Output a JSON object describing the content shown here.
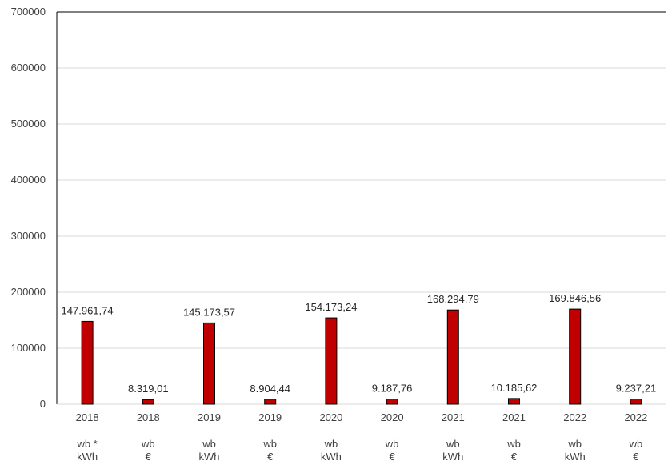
{
  "chart_data": {
    "type": "bar",
    "title": "",
    "xlabel": "",
    "ylabel": "",
    "ylim": [
      0,
      700000
    ],
    "y_ticks": [
      "0",
      "100000",
      "200000",
      "300000",
      "400000",
      "500000",
      "600000",
      "700000"
    ],
    "grid": true,
    "legend": "none",
    "bar_color": "#c00000",
    "categories": [
      {
        "year": "2018",
        "type": "wb *",
        "unit": "kWh"
      },
      {
        "year": "2018",
        "type": "wb",
        "unit": "€"
      },
      {
        "year": "2019",
        "type": "wb",
        "unit": "kWh"
      },
      {
        "year": "2019",
        "type": "wb",
        "unit": "€"
      },
      {
        "year": "2020",
        "type": "wb",
        "unit": "kWh"
      },
      {
        "year": "2020",
        "type": "wb",
        "unit": "€"
      },
      {
        "year": "2021",
        "type": "wb",
        "unit": "kWh"
      },
      {
        "year": "2021",
        "type": "wb",
        "unit": "€"
      },
      {
        "year": "2022",
        "type": "wb",
        "unit": "kWh"
      },
      {
        "year": "2022",
        "type": "wb",
        "unit": "€"
      }
    ],
    "values": [
      147961.74,
      8319.01,
      145173.57,
      8904.44,
      154173.24,
      9187.76,
      168294.79,
      10185.62,
      169846.56,
      9237.21
    ],
    "value_labels": [
      "147.961,74",
      "8.319,01",
      "145.173,57",
      "8.904,44",
      "154.173,24",
      "9.187,76",
      "168.294,79",
      "10.185,62",
      "169.846,56",
      "9.237,21"
    ]
  }
}
